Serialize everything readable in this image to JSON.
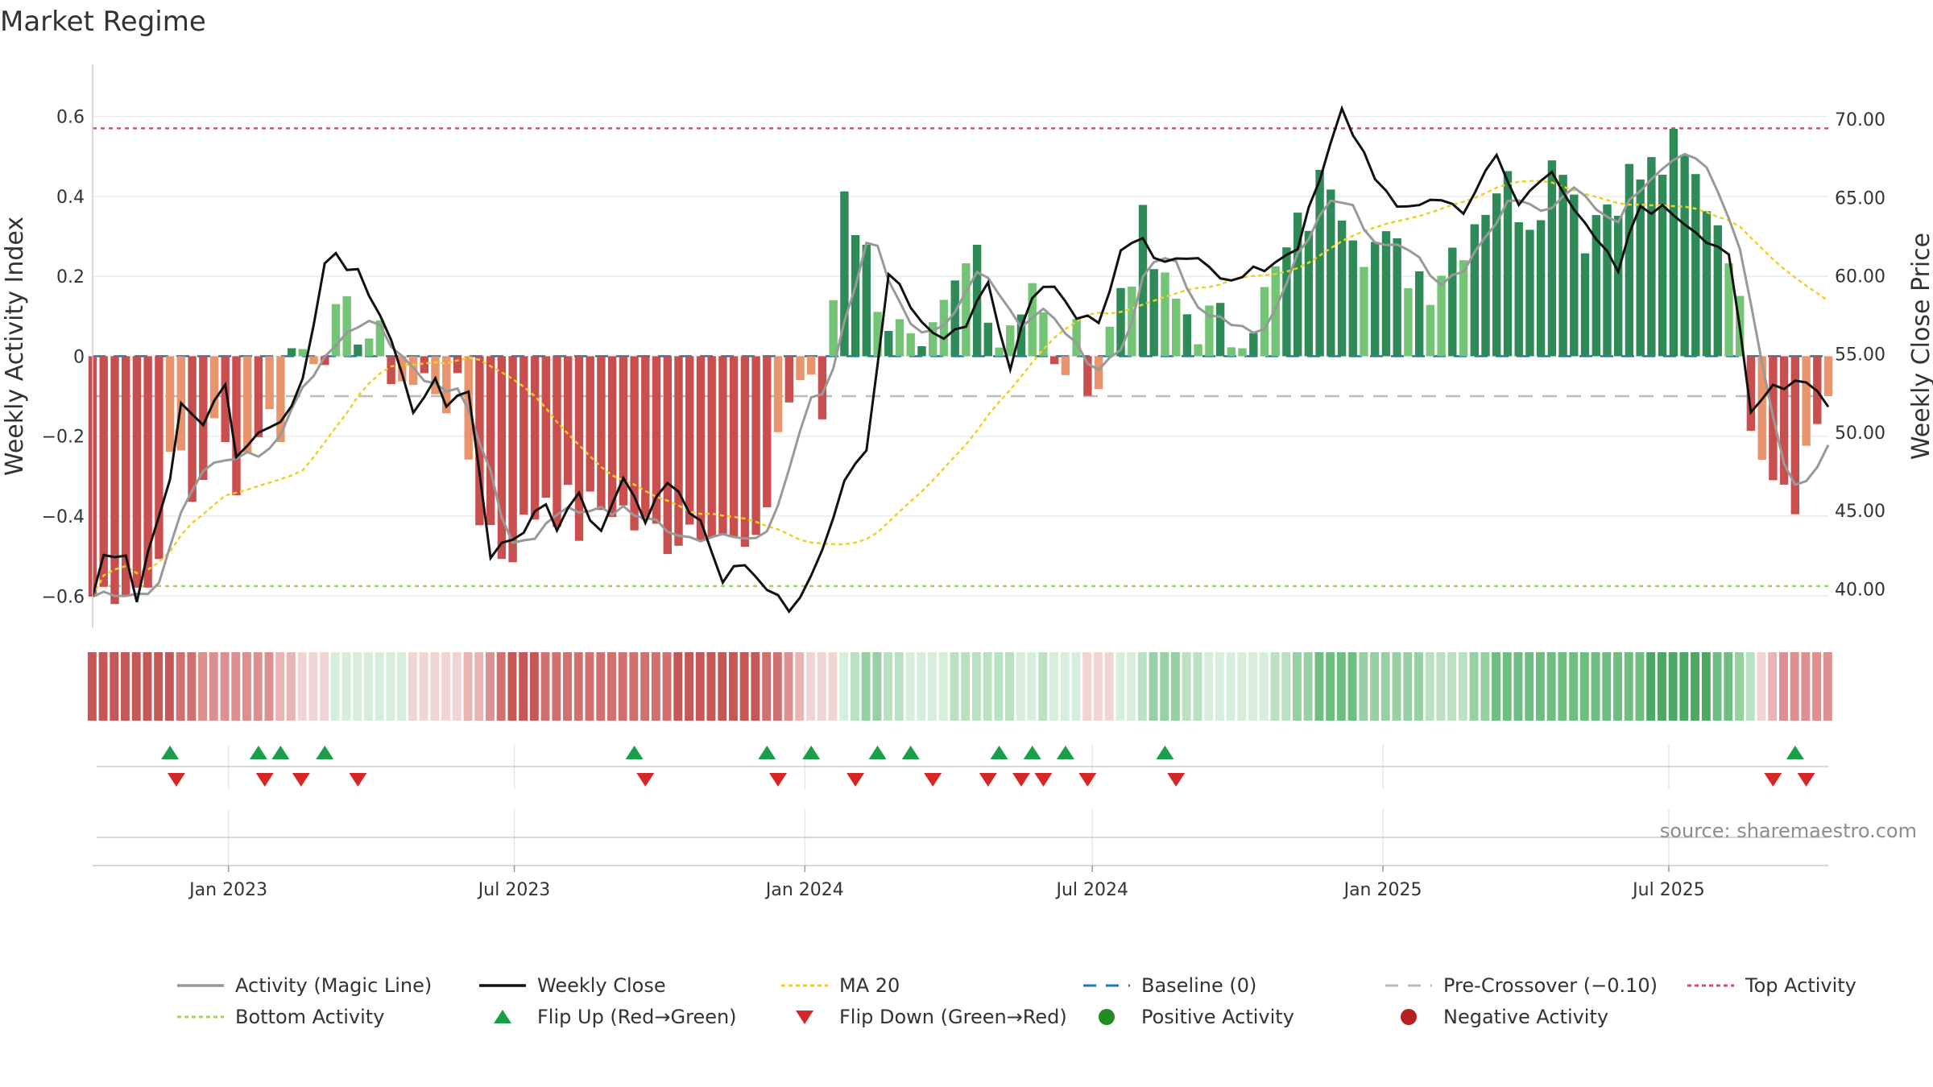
{
  "chart_data": {
    "type": "bar",
    "title": "Market Regime",
    "ylabel_left": "Weekly Activity Index",
    "ylabel_right": "Weekly Close Price",
    "source": "source: sharemaestro.com",
    "left_axis": {
      "range": [
        -0.68,
        0.73
      ],
      "ticks": [
        -0.6,
        -0.4,
        -0.2,
        0,
        0.2,
        0.4,
        0.6
      ],
      "tick_labels": [
        "−0.6",
        "−0.4",
        "−0.2",
        "0",
        "0.2",
        "0.4",
        "0.6"
      ]
    },
    "right_axis": {
      "range": [
        37.5,
        73.5
      ],
      "ticks": [
        40,
        45,
        50,
        55,
        60,
        65,
        70
      ],
      "tick_labels": [
        "40.00",
        "45.00",
        "50.00",
        "55.00",
        "60.00",
        "65.00",
        "70.00"
      ]
    },
    "x_axis": {
      "start": "2022-10-07",
      "end": "2025-10-10",
      "ticks": [
        "2023-01-01",
        "2023-07-01",
        "2024-01-01",
        "2024-07-01",
        "2025-01-01",
        "2025-07-01"
      ],
      "tick_labels": [
        "Jan 2023",
        "Jul 2023",
        "Jan 2024",
        "Jul 2024",
        "Jan 2025",
        "Jul 2025"
      ]
    },
    "reference_lines": {
      "top_activity": 0.57,
      "bottom_activity": -0.575,
      "pre_crossover": -0.1,
      "baseline": 0
    },
    "colors": {
      "strong_green": "#2e8b57",
      "light_green": "#74c476",
      "strong_red": "#c94f4f",
      "light_red": "#e8946c",
      "magic_line": "#999999",
      "weekly_close": "#111111",
      "ma20": "#f0d020",
      "baseline": "#1f77b4",
      "pre_crossover": "#bbbbbb",
      "top": "#d6506e",
      "bottom": "#9fd65a",
      "flip_up": "#1a9e4a",
      "flip_down": "#d62728"
    },
    "activity_anchors": [
      [
        "2022-10-07",
        -0.6
      ],
      [
        "2022-10-28",
        -0.56
      ],
      [
        "2022-11-11",
        -0.58
      ],
      [
        "2022-11-25",
        -0.3
      ],
      [
        "2022-12-02",
        -0.25
      ],
      [
        "2022-12-09",
        -0.35
      ],
      [
        "2022-12-23",
        -0.2
      ],
      [
        "2023-01-06",
        -0.28
      ],
      [
        "2023-01-13",
        -0.24
      ],
      [
        "2023-01-20",
        -0.16
      ],
      [
        "2023-02-03",
        -0.16
      ],
      [
        "2023-02-10",
        0.0
      ],
      [
        "2023-02-24",
        0.04
      ],
      [
        "2023-03-10",
        0.06
      ],
      [
        "2023-03-24",
        0.09
      ],
      [
        "2023-04-14",
        -0.02
      ],
      [
        "2023-04-28",
        -0.08
      ],
      [
        "2023-05-12",
        -0.06
      ],
      [
        "2023-05-26",
        -0.12
      ],
      [
        "2023-06-09",
        -0.38
      ],
      [
        "2023-06-23",
        -0.48
      ],
      [
        "2023-07-07",
        -0.44
      ],
      [
        "2023-07-21",
        -0.33
      ],
      [
        "2023-08-11",
        -0.42
      ],
      [
        "2023-09-01",
        -0.36
      ],
      [
        "2023-09-22",
        -0.45
      ],
      [
        "2023-10-13",
        -0.43
      ],
      [
        "2023-11-03",
        -0.38
      ],
      [
        "2023-11-17",
        -0.48
      ],
      [
        "2023-12-01",
        -0.52
      ],
      [
        "2023-12-15",
        -0.18
      ],
      [
        "2023-12-29",
        -0.05
      ],
      [
        "2024-01-12",
        -0.15
      ],
      [
        "2024-01-26",
        0.45
      ],
      [
        "2024-02-09",
        0.24
      ],
      [
        "2024-02-23",
        0.1
      ],
      [
        "2024-03-15",
        -0.05
      ],
      [
        "2024-04-05",
        0.15
      ],
      [
        "2024-04-19",
        0.27
      ],
      [
        "2024-05-03",
        0.05
      ],
      [
        "2024-05-24",
        0.2
      ],
      [
        "2024-06-07",
        -0.04
      ],
      [
        "2024-06-21",
        0.02
      ],
      [
        "2024-07-05",
        -0.06
      ],
      [
        "2024-07-19",
        0.18
      ],
      [
        "2024-08-02",
        0.3
      ],
      [
        "2024-08-16",
        0.15
      ],
      [
        "2024-09-06",
        0.09
      ],
      [
        "2024-09-27",
        0.06
      ],
      [
        "2024-10-18",
        0.14
      ],
      [
        "2024-11-08",
        0.3
      ],
      [
        "2024-11-29",
        0.47
      ],
      [
        "2024-12-20",
        0.3
      ],
      [
        "2025-01-10",
        0.24
      ],
      [
        "2025-01-31",
        0.2
      ],
      [
        "2025-02-21",
        0.31
      ],
      [
        "2025-03-14",
        0.44
      ],
      [
        "2025-04-04",
        0.37
      ],
      [
        "2025-04-25",
        0.52
      ],
      [
        "2025-05-09",
        0.32
      ],
      [
        "2025-05-30",
        0.43
      ],
      [
        "2025-06-20",
        0.46
      ],
      [
        "2025-07-04",
        0.5
      ],
      [
        "2025-07-25",
        0.4
      ],
      [
        "2025-08-08",
        0.3
      ],
      [
        "2025-08-22",
        -0.12
      ],
      [
        "2025-09-05",
        -0.26
      ],
      [
        "2025-09-19",
        -0.32
      ],
      [
        "2025-10-10",
        -0.08
      ]
    ],
    "weekly_close_anchors": [
      [
        "2022-10-07",
        39.5
      ],
      [
        "2022-10-14",
        41.8
      ],
      [
        "2022-10-28",
        42.2
      ],
      [
        "2022-11-04",
        39.5
      ],
      [
        "2022-11-25",
        47
      ],
      [
        "2022-12-02",
        51.5
      ],
      [
        "2022-12-16",
        50.5
      ],
      [
        "2022-12-30",
        52.7
      ],
      [
        "2023-01-06",
        48.5
      ],
      [
        "2023-01-20",
        49.8
      ],
      [
        "2023-02-03",
        50.3
      ],
      [
        "2023-02-17",
        53
      ],
      [
        "2023-03-03",
        60.5
      ],
      [
        "2023-03-10",
        61.5
      ],
      [
        "2023-03-24",
        60
      ],
      [
        "2023-04-14",
        56
      ],
      [
        "2023-04-28",
        51
      ],
      [
        "2023-05-12",
        53.5
      ],
      [
        "2023-05-19",
        51.3
      ],
      [
        "2023-06-02",
        53
      ],
      [
        "2023-06-16",
        42
      ],
      [
        "2023-06-30",
        43
      ],
      [
        "2023-07-21",
        45.7
      ],
      [
        "2023-07-28",
        44
      ],
      [
        "2023-08-11",
        46.3
      ],
      [
        "2023-08-25",
        43.3
      ],
      [
        "2023-09-08",
        47.5
      ],
      [
        "2023-09-22",
        44.5
      ],
      [
        "2023-10-06",
        47
      ],
      [
        "2023-10-27",
        44
      ],
      [
        "2023-11-10",
        40.5
      ],
      [
        "2023-11-24",
        41.8
      ],
      [
        "2023-12-08",
        40
      ],
      [
        "2023-12-22",
        38.5
      ],
      [
        "2024-01-12",
        42.5
      ],
      [
        "2024-01-26",
        47
      ],
      [
        "2024-02-09",
        49
      ],
      [
        "2024-02-23",
        60.5
      ],
      [
        "2024-03-08",
        58
      ],
      [
        "2024-03-22",
        56
      ],
      [
        "2024-04-12",
        57
      ],
      [
        "2024-04-26",
        60
      ],
      [
        "2024-05-10",
        53.8
      ],
      [
        "2024-05-24",
        59
      ],
      [
        "2024-06-07",
        59.5
      ],
      [
        "2024-06-21",
        57.5
      ],
      [
        "2024-07-05",
        57
      ],
      [
        "2024-07-19",
        61.5
      ],
      [
        "2024-08-02",
        62
      ],
      [
        "2024-08-16",
        60.5
      ],
      [
        "2024-09-06",
        61.5
      ],
      [
        "2024-09-27",
        59.5
      ],
      [
        "2024-10-18",
        60.5
      ],
      [
        "2024-11-08",
        62
      ],
      [
        "2024-11-22",
        66
      ],
      [
        "2024-12-06",
        70.5
      ],
      [
        "2024-12-27",
        66.5
      ],
      [
        "2025-01-10",
        64
      ],
      [
        "2025-01-31",
        65
      ],
      [
        "2025-02-21",
        64.3
      ],
      [
        "2025-03-14",
        67.5
      ],
      [
        "2025-03-28",
        64.5
      ],
      [
        "2025-04-18",
        67
      ],
      [
        "2025-05-09",
        63
      ],
      [
        "2025-05-30",
        60.3
      ],
      [
        "2025-06-13",
        64.5
      ],
      [
        "2025-07-04",
        64
      ],
      [
        "2025-07-25",
        62.5
      ],
      [
        "2025-08-08",
        61.5
      ],
      [
        "2025-08-22",
        51
      ],
      [
        "2025-09-05",
        53
      ],
      [
        "2025-09-26",
        53.5
      ],
      [
        "2025-10-10",
        51.8
      ]
    ],
    "markers": {
      "flip_up": [
        "2022-11-25",
        "2023-01-20",
        "2023-02-03",
        "2023-03-03",
        "2023-09-15",
        "2023-12-08",
        "2024-01-05",
        "2024-02-16",
        "2024-03-08",
        "2024-05-03",
        "2024-05-24",
        "2024-06-14",
        "2024-08-16",
        "2025-09-19"
      ],
      "flip_down": [
        "2022-11-29",
        "2023-01-24",
        "2023-02-16",
        "2023-03-24",
        "2023-09-22",
        "2023-12-15",
        "2024-02-02",
        "2024-03-22",
        "2024-04-26",
        "2024-05-17",
        "2024-05-31",
        "2024-06-28",
        "2024-08-23",
        "2025-09-05",
        "2025-09-26"
      ]
    },
    "legend": [
      {
        "key": "magic",
        "label": "Activity (Magic Line)",
        "symbol": "line"
      },
      {
        "key": "close",
        "label": "Weekly Close",
        "symbol": "line"
      },
      {
        "key": "ma20",
        "label": "MA 20",
        "symbol": "dotted"
      },
      {
        "key": "baseline",
        "label": "Baseline (0)",
        "symbol": "dashed"
      },
      {
        "key": "pre",
        "label": "Pre-Crossover (−0.10)",
        "symbol": "dashed"
      },
      {
        "key": "top",
        "label": "Top Activity",
        "symbol": "dotted"
      },
      {
        "key": "bottom",
        "label": "Bottom Activity",
        "symbol": "dotted"
      },
      {
        "key": "flipup",
        "label": "Flip Up (Red→Green)",
        "symbol": "tri-up"
      },
      {
        "key": "flipdown",
        "label": "Flip Down (Green→Red)",
        "symbol": "tri-down"
      },
      {
        "key": "pos",
        "label": "Positive Activity",
        "symbol": "circle"
      },
      {
        "key": "neg",
        "label": "Negative Activity",
        "symbol": "circle"
      }
    ],
    "legend_placement": "bottom"
  }
}
